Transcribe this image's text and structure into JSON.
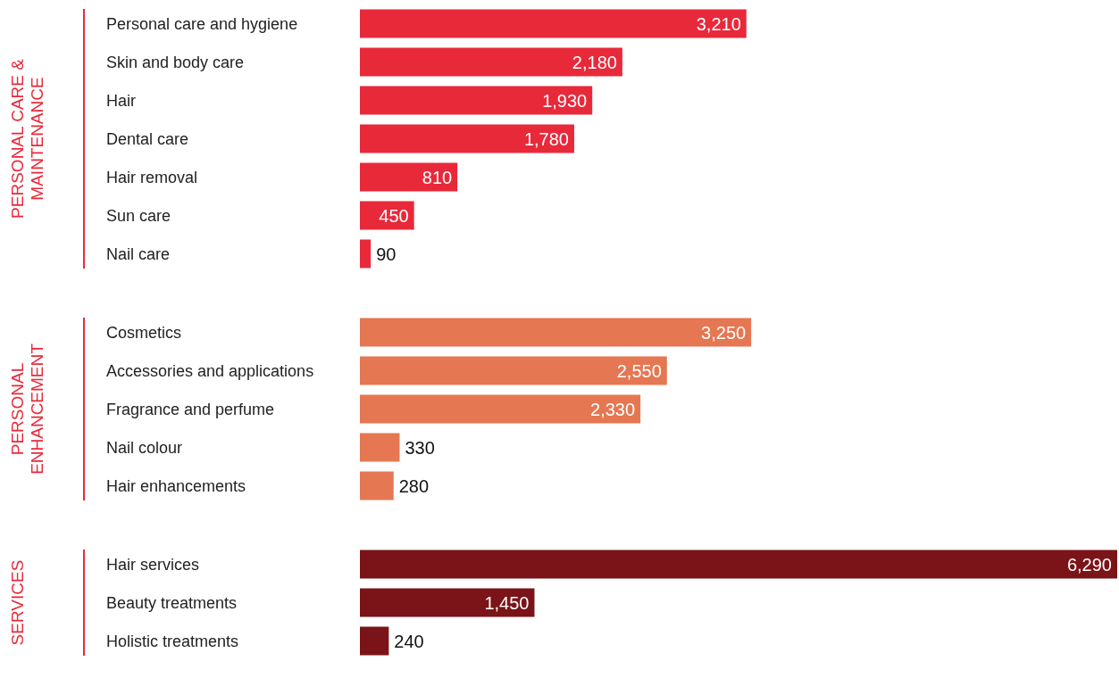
{
  "chart_data": [
    {
      "type": "bar",
      "orientation": "horizontal",
      "ylabel": "PERSONAL CARE & MAINTENANCE",
      "color": "#e8293a",
      "categories": [
        "Personal care and hygiene",
        "Skin and body care",
        "Hair",
        "Dental care",
        "Hair removal",
        "Sun care",
        "Nail care"
      ],
      "values": [
        3210,
        2180,
        1930,
        1780,
        810,
        450,
        90
      ],
      "value_labels": [
        "3,210",
        "2,180",
        "1,930",
        "1,780",
        "810",
        "450",
        "90"
      ]
    },
    {
      "type": "bar",
      "orientation": "horizontal",
      "ylabel": "PERSONAL ENHANCEMENT",
      "color": "#e57752",
      "categories": [
        "Cosmetics",
        "Accessories and applications",
        "Fragrance and perfume",
        "Nail colour",
        "Hair enhancements"
      ],
      "values": [
        3250,
        2550,
        2330,
        330,
        280
      ],
      "value_labels": [
        "3,250",
        "2,550",
        "2,330",
        "330",
        "280"
      ]
    },
    {
      "type": "bar",
      "orientation": "horizontal",
      "ylabel": "SERVICES",
      "color": "#7a1418",
      "categories": [
        "Hair services",
        "Beauty treatments",
        "Holistic treatments"
      ],
      "values": [
        6290,
        1450,
        240
      ],
      "value_labels": [
        "6,290",
        "1,450",
        "240"
      ]
    }
  ]
}
